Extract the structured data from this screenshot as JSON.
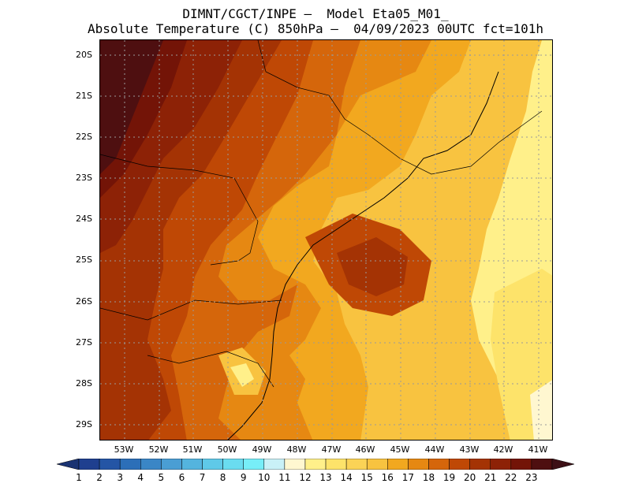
{
  "title": {
    "line1": "DIMNT/CGCT/INPE –  Model Eta05_M01_",
    "line2": "Absolute Temperature (C) 850hPa –  04/09/2023 00UTC fct=101h"
  },
  "map": {
    "lat_labels": [
      "20S",
      "21S",
      "22S",
      "23S",
      "24S",
      "25S",
      "26S",
      "27S",
      "28S",
      "29S"
    ],
    "lon_labels": [
      "53W",
      "52W",
      "51W",
      "50W",
      "49W",
      "48W",
      "47W",
      "46W",
      "45W",
      "44W",
      "43W",
      "42W",
      "41W"
    ]
  },
  "colorbar": {
    "labels": [
      "1",
      "2",
      "3",
      "4",
      "5",
      "6",
      "7",
      "8",
      "9",
      "10",
      "11",
      "12",
      "13",
      "14",
      "15",
      "16",
      "17",
      "18",
      "19",
      "20",
      "21",
      "22",
      "23"
    ],
    "colors": [
      "#1f3f8f",
      "#2455a5",
      "#2c6fb8",
      "#3a86c6",
      "#4a9ed4",
      "#54b4de",
      "#5fc9e8",
      "#6adcf0",
      "#77eef8",
      "#c9f1f7",
      "#fff7d0",
      "#fff08a",
      "#fde36a",
      "#fbd356",
      "#f8c340",
      "#f2a81f",
      "#e68812",
      "#d5660b",
      "#bf4805",
      "#a43304",
      "#8d2206",
      "#731407",
      "#4e0f10"
    ],
    "low_color": "#1a3372",
    "high_color": "#3d1016"
  }
}
